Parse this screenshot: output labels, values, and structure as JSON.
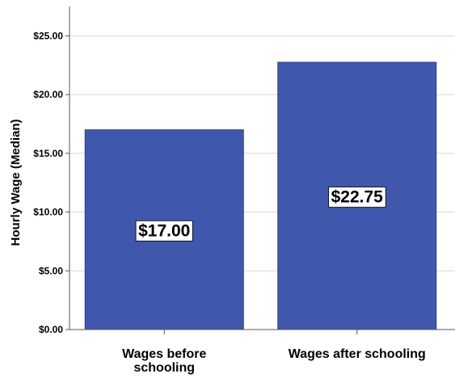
{
  "chart_data": {
    "type": "bar",
    "title": "",
    "xlabel": "",
    "ylabel": "Hourly Wage (Median)",
    "ylim": [
      0,
      27.5
    ],
    "yticks": [
      0,
      5,
      10,
      15,
      20,
      25
    ],
    "ytick_labels": [
      "$0.00",
      "$5.00",
      "$10.00",
      "$15.00",
      "$20.00",
      "$25.00"
    ],
    "categories": [
      [
        "Wages before",
        "schooling"
      ],
      [
        "Wages after schooling"
      ]
    ],
    "values": [
      17.0,
      22.75
    ],
    "data_labels": [
      "$17.00",
      "$22.75"
    ],
    "grid": true,
    "colors": {
      "bar": "#3f58ab",
      "bar_stroke": "#2b3f86",
      "grid": "#d9d9d9",
      "axis": "#555555",
      "background": "#ffffff"
    }
  }
}
